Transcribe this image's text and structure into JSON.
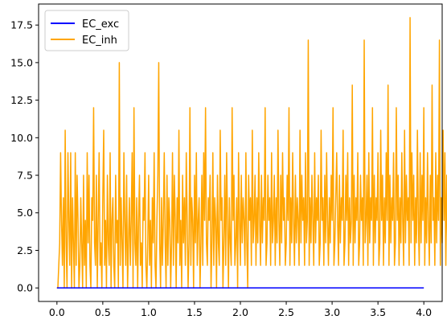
{
  "chart_data": {
    "type": "line",
    "title": "",
    "xlabel": "",
    "ylabel": "",
    "xlim": [
      -0.2,
      4.2
    ],
    "ylim": [
      -0.9,
      18.9
    ],
    "xticks": [
      0.0,
      0.5,
      1.0,
      1.5,
      2.0,
      2.5,
      3.0,
      3.5,
      4.0
    ],
    "xtick_labels": [
      "0.0",
      "0.5",
      "1.0",
      "1.5",
      "2.0",
      "2.5",
      "3.0",
      "3.5",
      "4.0"
    ],
    "yticks": [
      0.0,
      2.5,
      5.0,
      7.5,
      10.0,
      12.5,
      15.0,
      17.5
    ],
    "ytick_labels": [
      "0.0",
      "2.5",
      "5.0",
      "7.5",
      "10.0",
      "12.5",
      "15.0",
      "17.5"
    ],
    "legend_position": "top-left",
    "series": [
      {
        "name": "EC_exc",
        "color": "#0000ff",
        "description": "constant at 0 over the whole range",
        "x": [
          0.0,
          4.0
        ],
        "values": [
          0.0,
          0.0
        ]
      },
      {
        "name": "EC_inh",
        "color": "#ffa500",
        "description": "dense noisy signal sampled every 0.01; values are multiples of ~1.5",
        "x_start": 0.0,
        "x_step": 0.01,
        "values": [
          0,
          0,
          1.5,
          3,
          9,
          4.5,
          1.5,
          6,
          0,
          10.5,
          3,
          0,
          9,
          4.5,
          1.5,
          9,
          0,
          6,
          3,
          0,
          9,
          1.5,
          7.5,
          4.5,
          0,
          1.5,
          6,
          3,
          0,
          7.5,
          1.5,
          4.5,
          0,
          9,
          3,
          7.5,
          1.5,
          0,
          6,
          4.5,
          12,
          3,
          1.5,
          7.5,
          0,
          4.5,
          9,
          1.5,
          3,
          0,
          6,
          10.5,
          1.5,
          4.5,
          0,
          7.5,
          3,
          1.5,
          9,
          0,
          4.5,
          6,
          1.5,
          0,
          7.5,
          3,
          4.5,
          0,
          15,
          1.5,
          6,
          3,
          0,
          9,
          4.5,
          1.5,
          7.5,
          0,
          3,
          6,
          1.5,
          4.5,
          9,
          0,
          12,
          3,
          1.5,
          6,
          0,
          4.5,
          7.5,
          1.5,
          3,
          0,
          6,
          4.5,
          9,
          1.5,
          0,
          3,
          7.5,
          1.5,
          4.5,
          0,
          6,
          3,
          9,
          1.5,
          0,
          4.5,
          7.5,
          15,
          3,
          0,
          6,
          1.5,
          4.5,
          9,
          3,
          0,
          7.5,
          1.5,
          6,
          4.5,
          0,
          3,
          9,
          1.5,
          7.5,
          4.5,
          0,
          6,
          3,
          10.5,
          1.5,
          4.5,
          0,
          7.5,
          3,
          6,
          1.5,
          9,
          4.5,
          0,
          3,
          12,
          1.5,
          6,
          4.5,
          0,
          7.5,
          3,
          9,
          1.5,
          4.5,
          6,
          0,
          3,
          7.5,
          1.5,
          9,
          4.5,
          12,
          3,
          1.5,
          6,
          4.5,
          7.5,
          0,
          3,
          9,
          1.5,
          6,
          4.5,
          0,
          7.5,
          3,
          1.5,
          10.5,
          4.5,
          6,
          0,
          3,
          7.5,
          1.5,
          9,
          4.5,
          0,
          6,
          3,
          1.5,
          12,
          4.5,
          7.5,
          1.5,
          3,
          6,
          0,
          9,
          4.5,
          1.5,
          7.5,
          3,
          6,
          4.5,
          1.5,
          9,
          3,
          0,
          7.5,
          4.5,
          6,
          1.5,
          10.5,
          3,
          4.5,
          7.5,
          1.5,
          6,
          3,
          9,
          4.5,
          1.5,
          7.5,
          3,
          6,
          4.5,
          12,
          1.5,
          3,
          7.5,
          4.5,
          6,
          1.5,
          9,
          3,
          4.5,
          7.5,
          1.5,
          6,
          3,
          10.5,
          4.5,
          1.5,
          7.5,
          3,
          9,
          4.5,
          6,
          1.5,
          3,
          7.5,
          4.5,
          12,
          1.5,
          6,
          3,
          9,
          4.5,
          1.5,
          7.5,
          3,
          6,
          4.5,
          1.5,
          10.5,
          3,
          7.5,
          4.5,
          6,
          1.5,
          9,
          3,
          4.5,
          16.5,
          1.5,
          6,
          3,
          7.5,
          4.5,
          1.5,
          9,
          3,
          6,
          4.5,
          7.5,
          1.5,
          3,
          10.5,
          4.5,
          6,
          1.5,
          7.5,
          3,
          9,
          4.5,
          1.5,
          6,
          3,
          7.5,
          4.5,
          12,
          1.5,
          3,
          6,
          9,
          4.5,
          1.5,
          7.5,
          3,
          6,
          4.5,
          10.5,
          1.5,
          3,
          7.5,
          4.5,
          9,
          1.5,
          6,
          3,
          4.5,
          13.5,
          1.5,
          7.5,
          3,
          6,
          4.5,
          9,
          1.5,
          3,
          7.5,
          4.5,
          6,
          1.5,
          16.5,
          3,
          4.5,
          7.5,
          1.5,
          9,
          3,
          6,
          4.5,
          12,
          1.5,
          7.5,
          3,
          6,
          4.5,
          9,
          1.5,
          3,
          10.5,
          4.5,
          7.5,
          1.5,
          6,
          3,
          9,
          4.5,
          13.5,
          1.5,
          7.5,
          3,
          6,
          4.5,
          9,
          1.5,
          3,
          12,
          4.5,
          7.5,
          1.5,
          6,
          3,
          9,
          4.5,
          1.5,
          10.5,
          3,
          7.5,
          4.5,
          6,
          1.5,
          18,
          3,
          9,
          4.5,
          7.5,
          1.5,
          6,
          3,
          10.5,
          4.5,
          1.5,
          9,
          3,
          7.5,
          4.5,
          12,
          1.5,
          6,
          3,
          9,
          4.5,
          1.5,
          7.5,
          3,
          13.5,
          4.5,
          6,
          1.5,
          9,
          3,
          7.5,
          4.5,
          16.5,
          1.5,
          6,
          3,
          10.5,
          4.5,
          9,
          1.5,
          7.5,
          3,
          6,
          15
        ]
      }
    ]
  }
}
